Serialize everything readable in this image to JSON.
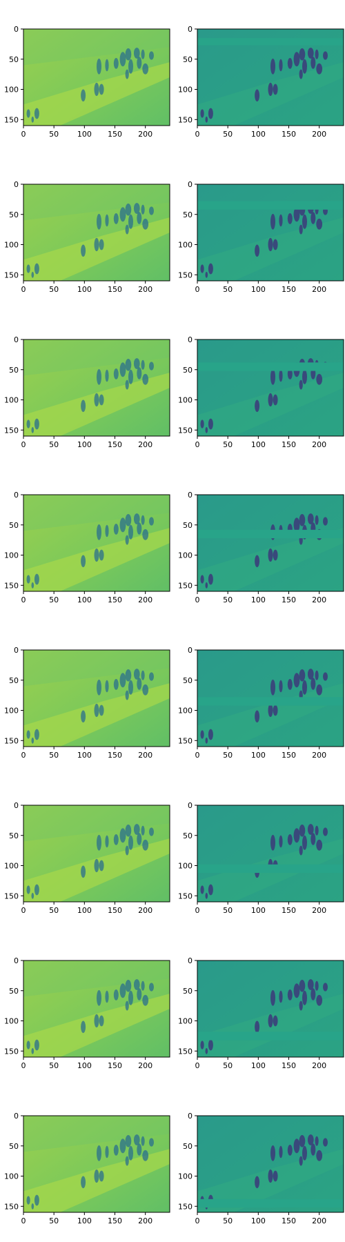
{
  "figure": {
    "rows": 8,
    "cols": 2,
    "x_ticks": [
      "0",
      "50",
      "100",
      "150",
      "200"
    ],
    "y_ticks": [
      "0",
      "50",
      "100",
      "150"
    ],
    "colormap": "viridis",
    "colors": {
      "bg_left": "#7cc95a",
      "bg_right": "#2aa088",
      "band_left": "#a8d84a",
      "band_right": "#34ad80",
      "figure_dark": "#3b3f7a",
      "figure_mid": "#2a6f8e",
      "axis": "#000000"
    },
    "masked_band_rows_right": [
      [
        15,
        27
      ],
      [
        28,
        42
      ],
      [
        38,
        52
      ],
      [
        58,
        72
      ],
      [
        78,
        92
      ],
      [
        98,
        112
      ],
      [
        118,
        132
      ],
      [
        138,
        152
      ]
    ]
  }
}
